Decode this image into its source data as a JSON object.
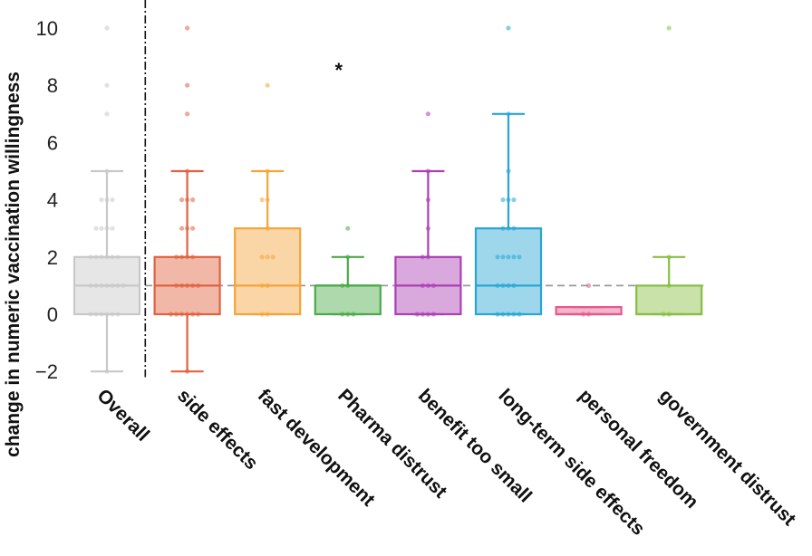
{
  "chart_data": {
    "type": "box",
    "ylabel": "change in numeric vaccination willingness",
    "ylim": [
      -2.4,
      10.6
    ],
    "yticks": [
      {
        "value": -2,
        "label": "−2"
      },
      {
        "value": 0,
        "label": "0"
      },
      {
        "value": 2,
        "label": "2"
      },
      {
        "value": 4,
        "label": "4"
      },
      {
        "value": 6,
        "label": "6"
      },
      {
        "value": 8,
        "label": "8"
      },
      {
        "value": 10,
        "label": "10"
      }
    ],
    "reference_line": 1,
    "separator_after": "Overall",
    "grid": false,
    "legend": "none",
    "annotations": [
      {
        "category": "Pharma distrust",
        "value": 8.6,
        "text": "*"
      }
    ],
    "categories": [
      "Overall",
      "side effects",
      "fast development",
      "Pharma distrust",
      "benefit too small",
      "long-term side effects",
      "personal freedom",
      "government distrust"
    ],
    "series": [
      {
        "category": "Overall",
        "color": "#c8c8c8",
        "min": -2,
        "q1": 0,
        "median": 1,
        "q3": 2,
        "max": 5,
        "points": [
          -2,
          0,
          0,
          0,
          0,
          0,
          0,
          1,
          1,
          1,
          1,
          1,
          1,
          1,
          2,
          2,
          2,
          2,
          2,
          2,
          3,
          3,
          3,
          3,
          4,
          4,
          4,
          5,
          7,
          8,
          10
        ]
      },
      {
        "category": "side effects",
        "color": "#e0623f",
        "min": -2,
        "q1": 0,
        "median": 1,
        "q3": 2,
        "max": 5,
        "points": [
          -2,
          0,
          0,
          0,
          0,
          0,
          0,
          1,
          1,
          1,
          1,
          1,
          2,
          2,
          2,
          2,
          3,
          3,
          3,
          4,
          4,
          4,
          5,
          7,
          8,
          10
        ]
      },
      {
        "category": "fast development",
        "color": "#f5a43a",
        "min": 0,
        "q1": 0,
        "median": 1,
        "q3": 3,
        "max": 5,
        "points": [
          0,
          0,
          1,
          1,
          2,
          2,
          2,
          3,
          4,
          4,
          5,
          8
        ]
      },
      {
        "category": "Pharma distrust",
        "color": "#4aaa48",
        "min": 0,
        "q1": 0,
        "median": 1,
        "q3": 1,
        "max": 2,
        "points": [
          0,
          0,
          0,
          1,
          1,
          2,
          3
        ]
      },
      {
        "category": "benefit too small",
        "color": "#ab3fb4",
        "min": 0,
        "q1": 0,
        "median": 1,
        "q3": 2,
        "max": 5,
        "points": [
          0,
          0,
          0,
          0,
          1,
          1,
          1,
          2,
          2,
          3,
          4,
          5,
          7
        ]
      },
      {
        "category": "long-term side effects",
        "color": "#28a6d4",
        "min": 0,
        "q1": 0,
        "median": 1,
        "q3": 3,
        "max": 7,
        "points": [
          0,
          0,
          0,
          0,
          0,
          1,
          1,
          1,
          1,
          2,
          2,
          2,
          2,
          2,
          3,
          3,
          3,
          4,
          4,
          4,
          5,
          7,
          10
        ]
      },
      {
        "category": "personal freedom",
        "color": "#e35b8c",
        "min": 0,
        "q1": 0,
        "median": 0,
        "q3": 0.25,
        "max": 0.25,
        "points": [
          0,
          0,
          1
        ]
      },
      {
        "category": "government distrust",
        "color": "#86bf43",
        "min": 0,
        "q1": 0,
        "median": 0,
        "q3": 1,
        "max": 2,
        "points": [
          0,
          0,
          1,
          2,
          10
        ]
      }
    ]
  }
}
